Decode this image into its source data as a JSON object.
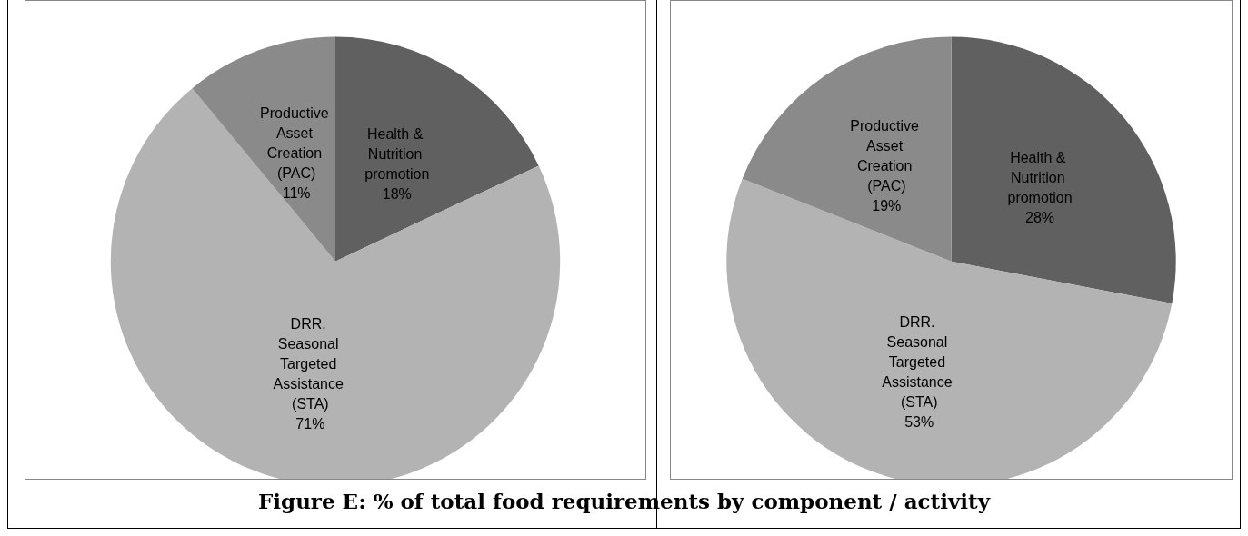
{
  "chart_data": [
    {
      "type": "pie",
      "categories": [
        "Health & Nutrition promotion",
        "DRR. Seasonal Targeted Assistance (STA)",
        "Productive Asset Creation (PAC)"
      ],
      "values": [
        18,
        71,
        11
      ],
      "value_labels": [
        "18%",
        "71%",
        "11%"
      ],
      "colors": [
        "#606060",
        "#b3b3b3",
        "#8a8a8a"
      ],
      "legend": false,
      "annotations": [
        "Figure E: % of total food requirements by component / activity"
      ]
    },
    {
      "type": "pie",
      "categories": [
        "Health & Nutrition promotion",
        "DRR. Seasonal Targeted Assistance (STA)",
        "Productive Asset Creation (PAC)"
      ],
      "values": [
        28,
        53,
        19
      ],
      "value_labels": [
        "28%",
        "53%",
        "19%"
      ],
      "colors": [
        "#606060",
        "#b3b3b3",
        "#8a8a8a"
      ],
      "legend": false
    }
  ]
}
